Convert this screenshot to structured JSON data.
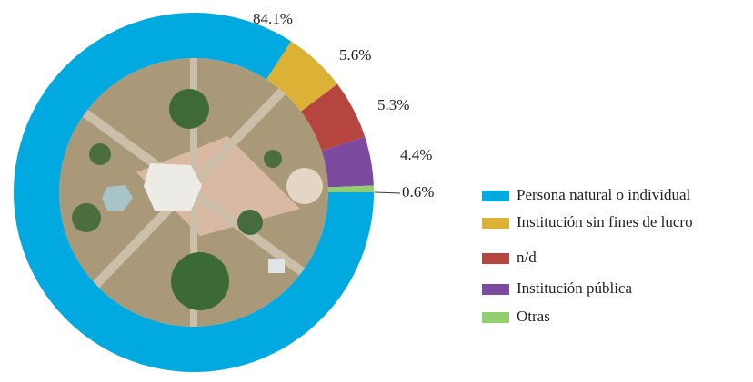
{
  "chart_data": {
    "type": "donut",
    "categories": [
      "Persona natural o individual",
      "Institución sin fines de lucro",
      "n/d",
      "Institución pública",
      "Otras"
    ],
    "values": [
      84.1,
      5.6,
      5.3,
      4.4,
      0.6
    ],
    "value_labels": [
      "84.1%",
      "5.6%",
      "5.3%",
      "4.4%",
      "0.6%"
    ],
    "colors": [
      "#00a9e0",
      "#dcb236",
      "#b6443f",
      "#7c4a9f",
      "#92d06f"
    ],
    "legend": "right"
  }
}
